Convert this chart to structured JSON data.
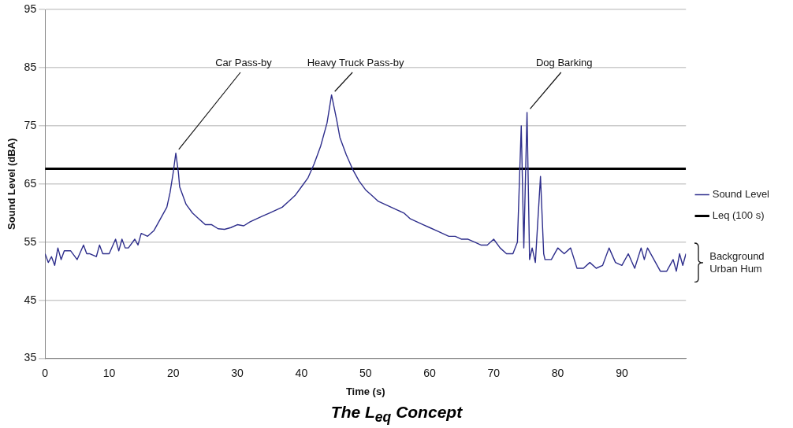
{
  "chart_data": {
    "type": "line",
    "title": "The L$_{eq}$ Concept",
    "xlabel": "Time (s)",
    "ylabel": "Sound Level (dBA)",
    "xlim": [
      0,
      100
    ],
    "xticks": [
      0,
      10,
      20,
      30,
      40,
      50,
      60,
      70,
      80,
      90
    ],
    "ylim": [
      35,
      95
    ],
    "yticks": [
      35,
      45,
      55,
      65,
      75,
      85,
      95
    ],
    "grid": "y",
    "legend": "right",
    "marker": "none",
    "line_style": "solid",
    "series": [
      {
        "name": "Sound Level",
        "color": "#2e2e8c",
        "x": [
          0,
          0.5,
          1,
          1.5,
          2,
          2.5,
          3,
          4,
          5,
          6,
          6.5,
          7,
          8,
          8.5,
          9,
          10,
          11,
          11.5,
          12,
          12.5,
          13,
          14,
          14.5,
          15,
          16,
          17,
          18,
          19,
          19.5,
          20,
          20.4,
          20.8,
          21,
          22,
          23,
          24,
          25,
          26,
          27,
          28,
          29,
          30,
          31,
          32,
          33,
          34,
          35,
          36,
          37,
          38,
          39,
          40,
          41,
          42,
          43,
          44,
          44.7,
          45.5,
          46,
          47,
          48,
          49,
          50,
          51,
          52,
          53,
          54,
          55,
          56,
          57,
          58,
          59,
          60,
          61,
          62,
          63,
          64,
          65,
          66,
          67,
          68,
          69,
          70,
          71,
          72,
          73,
          73.7,
          74.3,
          74.7,
          75.2,
          75.6,
          76,
          76.5,
          77.3,
          77.8,
          78,
          79,
          80,
          81,
          82,
          83,
          84,
          85,
          86,
          87,
          88,
          89,
          90,
          91,
          92,
          93,
          93.5,
          94,
          95,
          96,
          97,
          98,
          98.5,
          99,
          99.5,
          100
        ],
        "values": [
          53,
          51.5,
          52.5,
          51,
          54,
          52,
          53.5,
          53.5,
          52,
          54.5,
          53,
          53,
          52.5,
          54.5,
          53,
          53,
          55.5,
          53.5,
          55.5,
          54,
          54,
          55.5,
          54.5,
          56.5,
          56,
          57,
          59,
          61,
          63.5,
          67,
          70.3,
          67,
          64.5,
          61.5,
          60,
          59,
          58,
          58,
          57.3,
          57.2,
          57.5,
          58,
          57.8,
          58.5,
          59,
          59.5,
          60,
          60.5,
          61,
          62,
          63,
          64.5,
          66,
          68.5,
          71.5,
          75.5,
          80.3,
          76,
          73,
          70,
          67.5,
          65.5,
          64,
          63,
          62,
          61.5,
          61,
          60.5,
          60,
          59,
          58.5,
          58,
          57.5,
          57,
          56.5,
          56,
          56,
          55.5,
          55.5,
          55,
          54.5,
          54.5,
          55.5,
          54,
          53,
          53,
          55,
          75,
          54,
          77.3,
          52,
          54,
          51.5,
          66.3,
          53,
          52,
          52,
          54,
          53,
          54,
          50.5,
          50.5,
          51.5,
          50.5,
          51,
          54,
          51.5,
          51,
          53,
          50.5,
          54,
          52,
          54,
          52,
          50,
          50,
          52,
          50,
          53,
          51,
          53
        ]
      },
      {
        "name": "Leq (100 s)",
        "color": "#000000",
        "x": [
          0,
          100
        ],
        "values": [
          67.6,
          67.6
        ]
      }
    ],
    "annotations": [
      {
        "text": "Car Pass-by",
        "x": 20.4,
        "y": 70.3
      },
      {
        "text": "Heavy Truck Pass-by",
        "x": 44.7,
        "y": 80.3
      },
      {
        "text": "Dog Barking",
        "x": 75.2,
        "y": 77.3
      },
      "Background Urban Hum"
    ]
  }
}
